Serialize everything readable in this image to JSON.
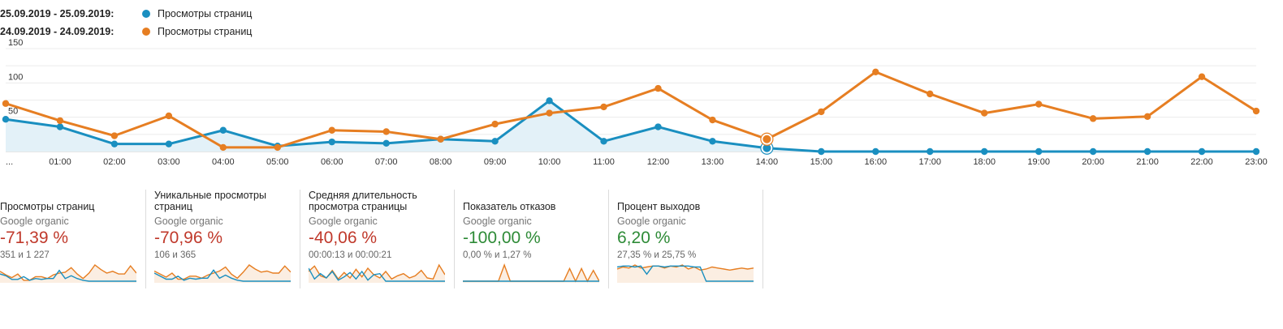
{
  "legend": [
    {
      "range": "25.09.2019 - 25.09.2019:",
      "name": "Просмотры страниц",
      "color": "#1a8fc0"
    },
    {
      "range": "24.09.2019 - 24.09.2019:",
      "name": "Просмотры страниц",
      "color": "#e67e22"
    }
  ],
  "chart_data": {
    "type": "line",
    "x": [
      "...",
      "01:00",
      "02:00",
      "03:00",
      "04:00",
      "05:00",
      "06:00",
      "07:00",
      "08:00",
      "09:00",
      "10:00",
      "11:00",
      "12:00",
      "13:00",
      "14:00",
      "15:00",
      "16:00",
      "17:00",
      "18:00",
      "19:00",
      "20:00",
      "21:00",
      "22:00",
      "23:00"
    ],
    "yticks": [
      50,
      100,
      150
    ],
    "ylim": [
      0,
      150
    ],
    "grid": true,
    "series": [
      {
        "name": "Просмотры страниц",
        "date_range": "25.09.2019 - 25.09.2019",
        "color": "#1a8fc0",
        "area": true,
        "values": [
          47,
          36,
          11,
          11,
          31,
          8,
          14,
          12,
          18,
          15,
          74,
          15,
          36,
          15,
          5,
          0,
          0,
          0,
          0,
          0,
          0,
          0,
          0,
          0
        ]
      },
      {
        "name": "Просмотры страниц",
        "date_range": "24.09.2019 - 24.09.2019",
        "color": "#e67e22",
        "area": false,
        "values": [
          70,
          45,
          23,
          52,
          6,
          6,
          31,
          29,
          18,
          40,
          56,
          65,
          92,
          46,
          18,
          58,
          116,
          84,
          56,
          69,
          48,
          51,
          109,
          59
        ]
      }
    ],
    "highlight_index": 14
  },
  "metrics": [
    {
      "title": "Просмотры страниц",
      "segment": "Google organic",
      "change": "-71,39 %",
      "trend": "neg",
      "values": "351 и 1 227",
      "spark_current": [
        8,
        6,
        2,
        2,
        5,
        1,
        3,
        2,
        3,
        3,
        12,
        3,
        6,
        3,
        1,
        0,
        0,
        0,
        0,
        0,
        0,
        0,
        0,
        0
      ],
      "spark_previous": [
        11,
        7,
        4,
        8,
        1,
        1,
        5,
        5,
        3,
        7,
        9,
        10,
        15,
        8,
        3,
        9,
        18,
        13,
        9,
        11,
        8,
        8,
        17,
        9
      ]
    },
    {
      "title": "Уникальные просмотры страниц",
      "segment": "Google organic",
      "change": "-70,96 %",
      "trend": "neg",
      "values": "106 и 365",
      "spark_current": [
        8,
        5,
        2,
        2,
        5,
        1,
        3,
        2,
        3,
        3,
        11,
        3,
        6,
        3,
        1,
        0,
        0,
        0,
        0,
        0,
        0,
        0,
        0,
        0
      ],
      "spark_previous": [
        10,
        7,
        4,
        8,
        2,
        2,
        5,
        5,
        3,
        6,
        8,
        10,
        14,
        7,
        3,
        9,
        16,
        12,
        9,
        10,
        8,
        8,
        15,
        9
      ]
    },
    {
      "title": "Средняя длительность просмотра страницы",
      "segment": "Google organic",
      "change": "-40,06 %",
      "trend": "neg",
      "values": "00:00:13 и 00:00:21",
      "spark_current": [
        12,
        2,
        7,
        3,
        9,
        1,
        4,
        8,
        2,
        9,
        1,
        6,
        7,
        0,
        0,
        0,
        0,
        0,
        0,
        0,
        0,
        0,
        0,
        0
      ],
      "spark_previous": [
        9,
        14,
        5,
        3,
        10,
        2,
        8,
        3,
        11,
        4,
        12,
        6,
        3,
        9,
        2,
        5,
        7,
        3,
        5,
        10,
        3,
        2,
        15,
        6
      ]
    },
    {
      "title": "Показатель отказов",
      "segment": "Google organic",
      "change": "-100,00 %",
      "trend": "pos",
      "values": "0,00 % и 1,27 %",
      "spark_current": [
        0,
        0,
        0,
        0,
        0,
        0,
        0,
        0,
        0,
        0,
        0,
        0,
        0,
        0,
        0,
        0,
        0,
        0,
        0,
        0,
        0,
        0,
        0,
        0
      ],
      "spark_previous": [
        0,
        0,
        0,
        0,
        0,
        0,
        0,
        18,
        0,
        0,
        0,
        0,
        0,
        0,
        0,
        0,
        0,
        0,
        14,
        0,
        14,
        0,
        12,
        0
      ]
    },
    {
      "title": "Процент выходов",
      "segment": "Google organic",
      "change": "6,20 %",
      "trend": "pos",
      "values": "27,35 % и 25,75 %",
      "spark_current": [
        14,
        15,
        15,
        14,
        15,
        7,
        15,
        15,
        14,
        15,
        15,
        15,
        15,
        14,
        14,
        0,
        0,
        0,
        0,
        0,
        0,
        0,
        0,
        0
      ],
      "spark_previous": [
        12,
        14,
        13,
        16,
        13,
        14,
        15,
        15,
        13,
        15,
        14,
        16,
        12,
        14,
        11,
        12,
        14,
        13,
        12,
        11,
        12,
        13,
        12,
        13
      ]
    }
  ]
}
